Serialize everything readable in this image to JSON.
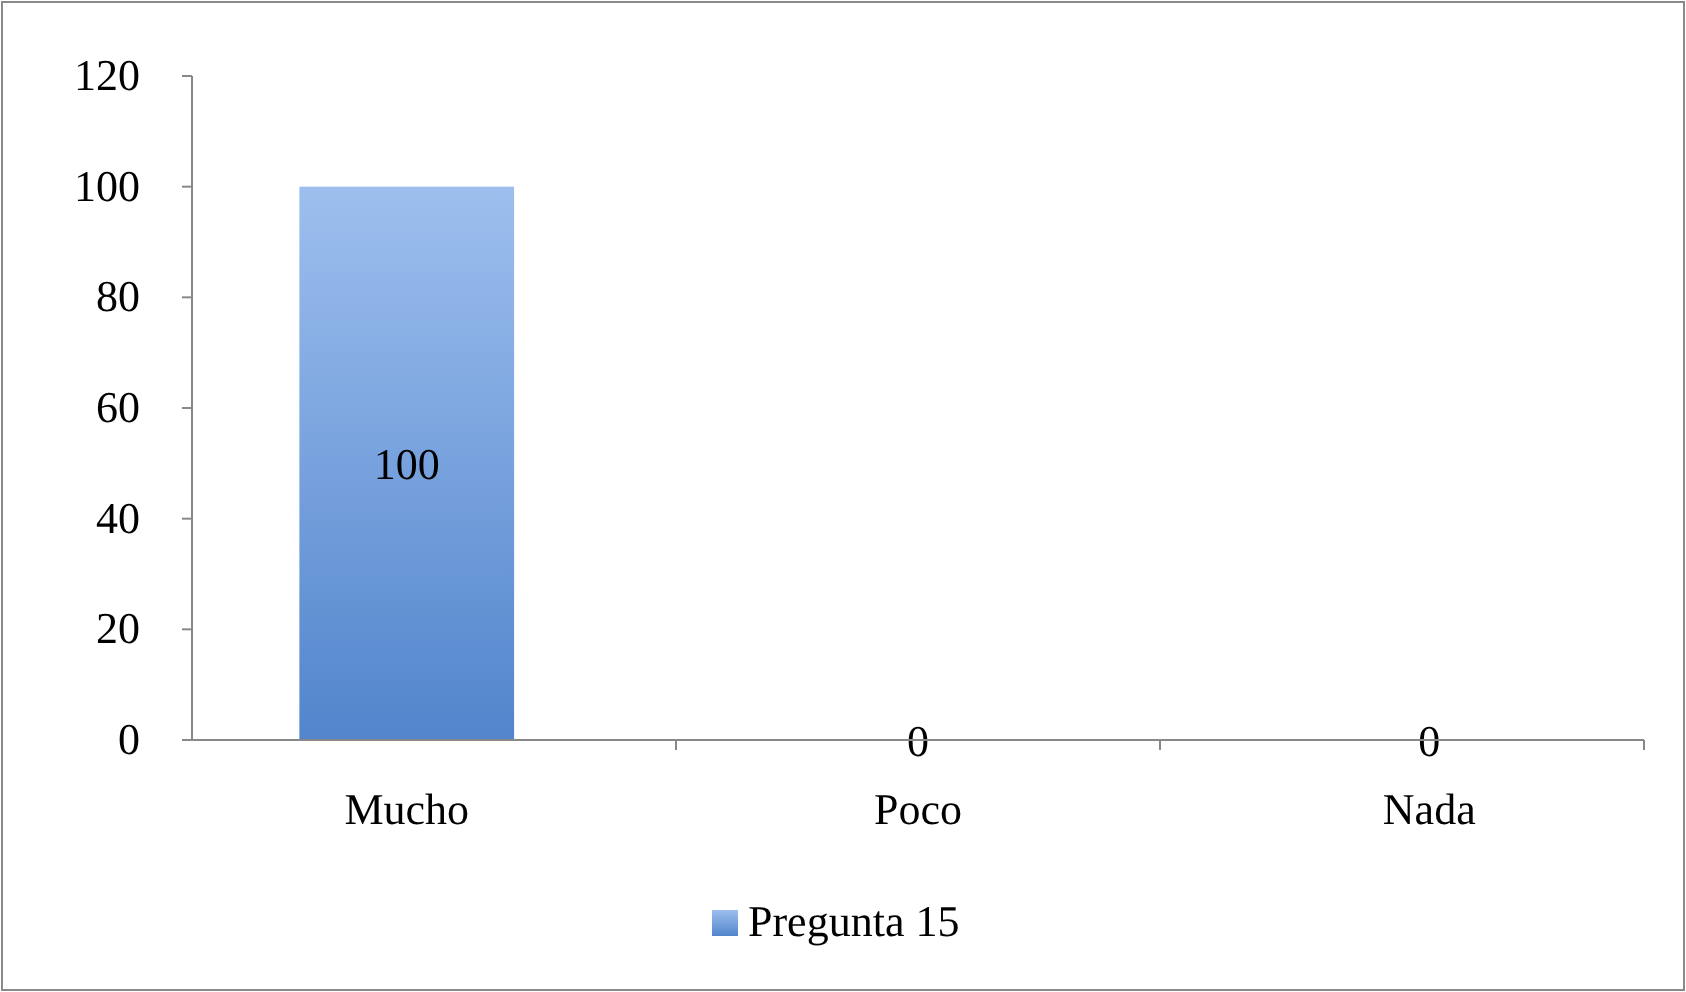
{
  "chart_data": {
    "type": "bar",
    "categories": [
      "Mucho",
      "Poco",
      "Nada"
    ],
    "series": [
      {
        "name": "Pregunta 15",
        "color": "#5b94e3",
        "values": [
          100,
          0,
          0
        ]
      }
    ],
    "ylim": [
      0,
      120
    ],
    "yticks": [
      0,
      20,
      40,
      60,
      80,
      100,
      120
    ],
    "grid": false,
    "legend": "bottom",
    "data_labels": true
  }
}
